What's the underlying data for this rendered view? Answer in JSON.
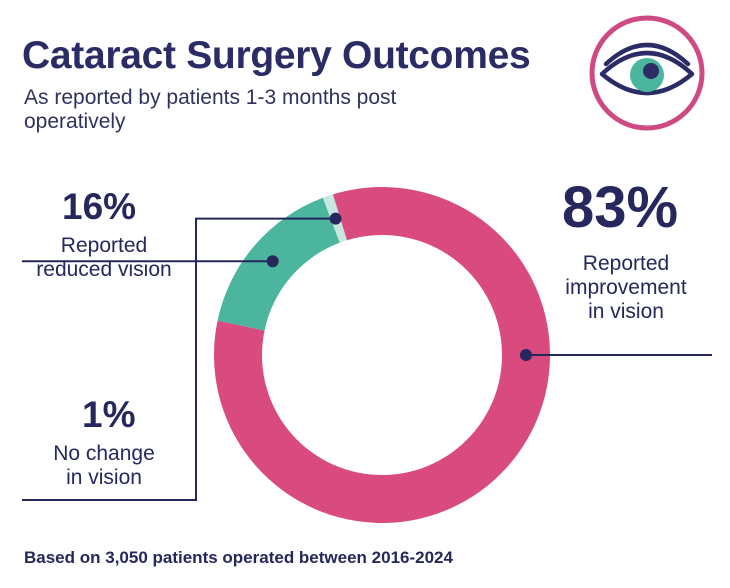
{
  "title": "Cataract Surgery Outcomes",
  "subtitle": "As reported by patients 1-3 months post operatively",
  "footnote": "Based on 3,050 patients operated between 2016-2024",
  "icon": "eye-icon",
  "colors": {
    "improvement": "#d94a7f",
    "reduced": "#4bb59e",
    "no_change": "#c6e8e0",
    "navy": "#26275c",
    "badge_ring": "#cf4a82"
  },
  "chart_data": {
    "type": "pie",
    "donut": true,
    "title": "Cataract Surgery Outcomes",
    "categories": [
      "Reported improvement in vision",
      "Reported reduced vision",
      "No change in vision"
    ],
    "values": [
      83,
      16,
      1
    ],
    "unit": "%",
    "labels": {
      "improvement": {
        "value": "83%",
        "lines": [
          "Reported",
          "improvement",
          "in vision"
        ]
      },
      "reduced": {
        "value": "16%",
        "lines": [
          "Reported",
          "reduced vision"
        ]
      },
      "no_change": {
        "value": "1%",
        "lines": [
          "No change",
          "in vision"
        ]
      }
    }
  }
}
